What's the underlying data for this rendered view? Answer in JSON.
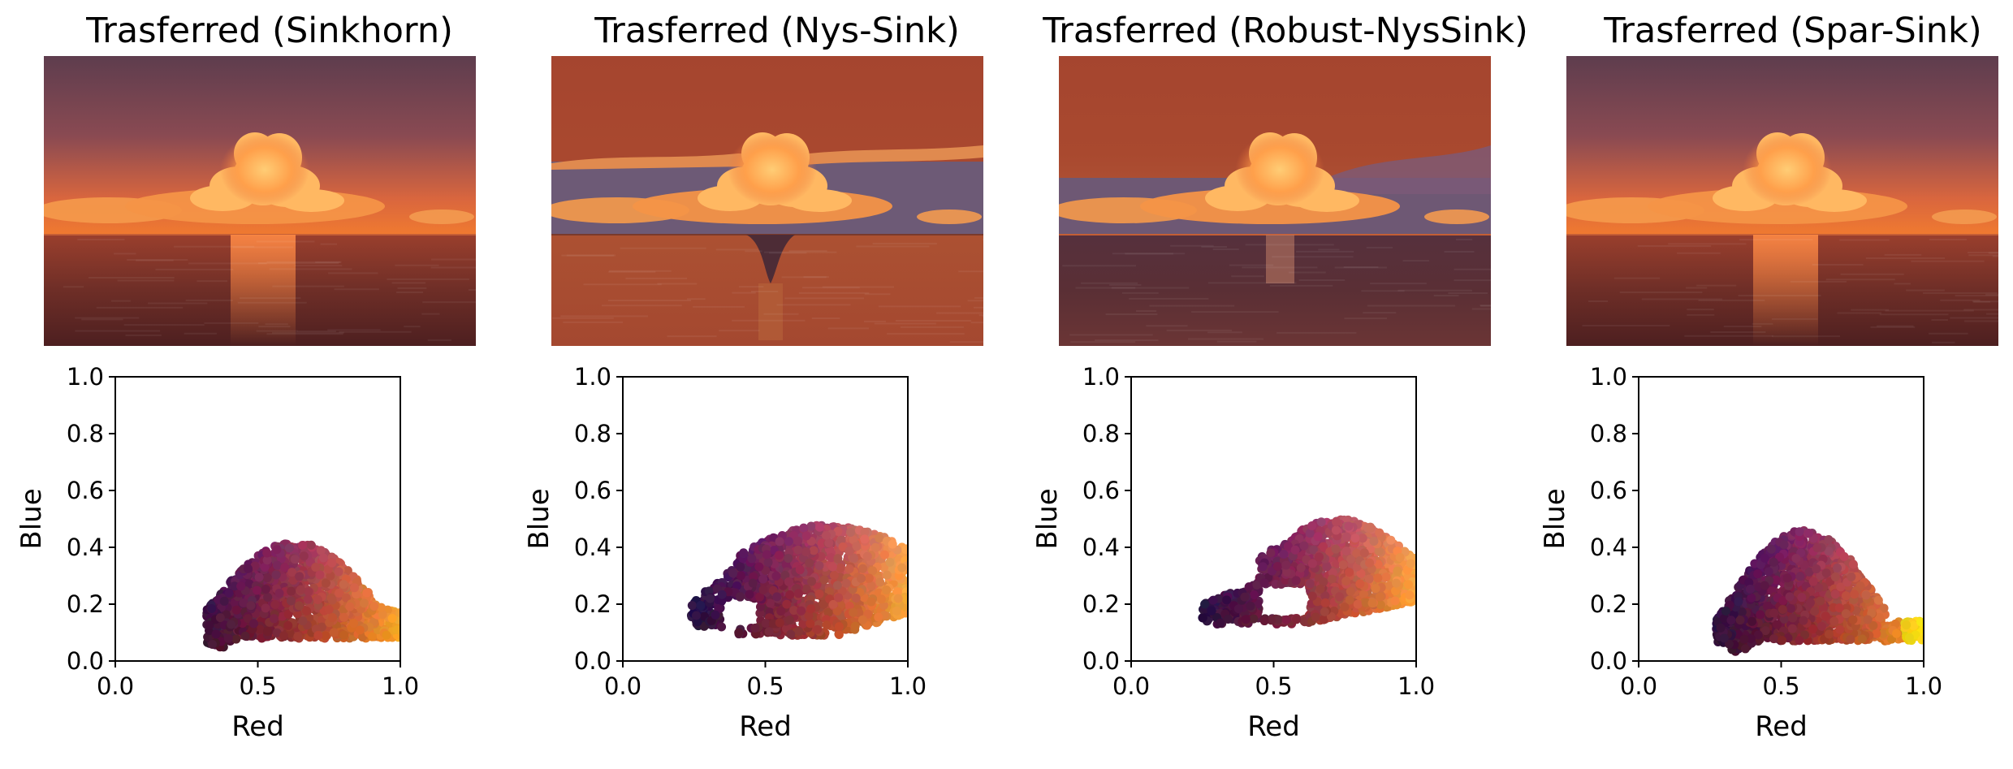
{
  "figure": {
    "panels": [
      {
        "title": "Trasferred (Sinkhorn)",
        "image_style": "sinkhorn",
        "cloud_style": "sinkhorn"
      },
      {
        "title": "Trasferred (Nys-Sink)",
        "image_style": "nys",
        "cloud_style": "nys"
      },
      {
        "title": "Trasferred (Robust-NysSink)",
        "image_style": "robust",
        "cloud_style": "robust"
      },
      {
        "title": "Trasferred (Spar-Sink)",
        "image_style": "spar",
        "cloud_style": "spar"
      }
    ]
  },
  "chart_data": [
    {
      "type": "scatter",
      "title": "Trasferred (Sinkhorn)",
      "xlabel": "Red",
      "ylabel": "Blue",
      "xlim": [
        0.0,
        1.0
      ],
      "ylim": [
        0.0,
        1.0
      ],
      "xticks": [
        "0.0",
        "0.5",
        "1.0"
      ],
      "yticks": [
        "0.0",
        "0.2",
        "0.4",
        "0.6",
        "0.8",
        "1.0"
      ],
      "grid": false,
      "points_description": "dense cloud of pixel colors, point color = pixel color (dark brown to orange)",
      "extent": {
        "x": [
          0.32,
          1.0
        ],
        "y": [
          0.04,
          0.42
        ]
      }
    },
    {
      "type": "scatter",
      "title": "Trasferred (Nys-Sink)",
      "xlabel": "Red",
      "ylabel": "Blue",
      "xlim": [
        0.0,
        1.0
      ],
      "ylim": [
        0.0,
        1.0
      ],
      "xticks": [
        "0.0",
        "0.5",
        "1.0"
      ],
      "yticks": [
        "0.0",
        "0.2",
        "0.4",
        "0.6",
        "0.8",
        "1.0"
      ],
      "grid": false,
      "points_description": "pixel color cloud with a notch on the lower left",
      "extent": {
        "x": [
          0.24,
          1.0
        ],
        "y": [
          0.09,
          0.49
        ]
      }
    },
    {
      "type": "scatter",
      "title": "Trasferred (Robust-NysSink)",
      "xlabel": "Red",
      "ylabel": "Blue",
      "xlim": [
        0.0,
        1.0
      ],
      "ylim": [
        0.0,
        1.0
      ],
      "xticks": [
        "0.0",
        "0.5",
        "1.0"
      ],
      "yticks": [
        "0.0",
        "0.2",
        "0.4",
        "0.6",
        "0.8",
        "1.0"
      ],
      "grid": false,
      "points_description": "pixel color cloud with a gap between two lobes",
      "extent": {
        "x": [
          0.25,
          1.0
        ],
        "y": [
          0.12,
          0.5
        ]
      }
    },
    {
      "type": "scatter",
      "title": "Trasferred (Spar-Sink)",
      "xlabel": "Red",
      "ylabel": "Blue",
      "xlim": [
        0.0,
        1.0
      ],
      "ylim": [
        0.0,
        1.0
      ],
      "xticks": [
        "0.0",
        "0.5",
        "1.0"
      ],
      "yticks": [
        "0.0",
        "0.2",
        "0.4",
        "0.6",
        "0.8",
        "1.0"
      ],
      "grid": false,
      "points_description": "pixel color cloud extending to bright yellow at red = 1.0",
      "extent": {
        "x": [
          0.27,
          1.0
        ],
        "y": [
          0.03,
          0.47
        ]
      }
    }
  ]
}
